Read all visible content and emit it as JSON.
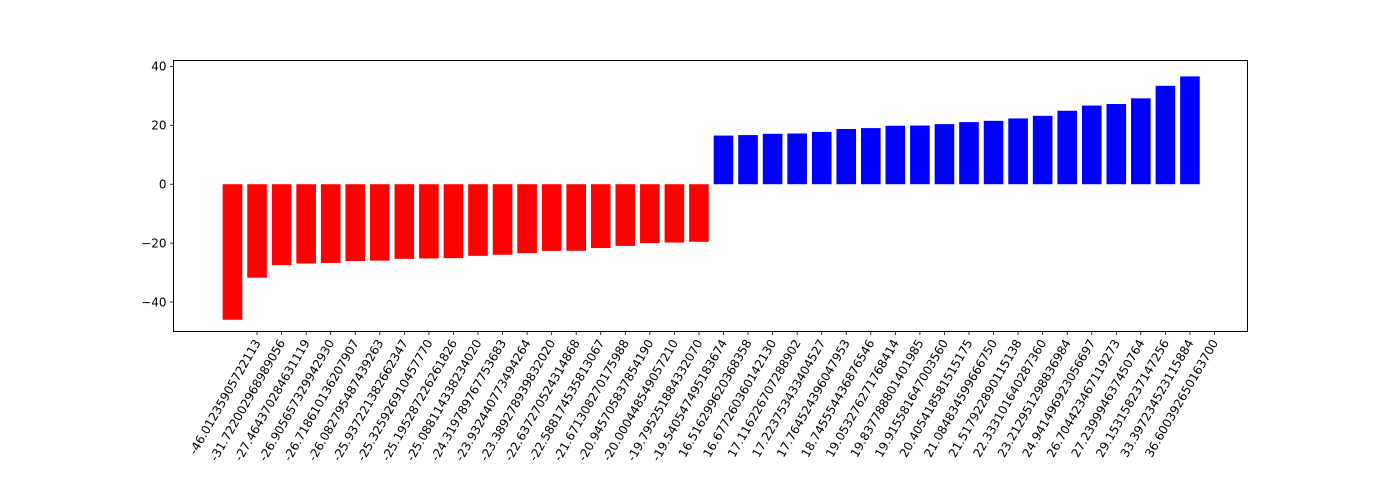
{
  "chart_data": {
    "type": "bar",
    "title": "",
    "xlabel": "",
    "ylabel": "",
    "ylim": [
      -50,
      42
    ],
    "yticks": [
      -40,
      -20,
      0,
      20,
      40
    ],
    "colors": {
      "negative": "#ff0000",
      "positive": "#0000ff"
    },
    "categories": [
      "-46.01235905722113",
      "-31.722002968989056",
      "-27.464370284631119",
      "-26.905657329942393",
      "-26.718610136207907",
      "-26.082795487439263",
      "-25.937221382662347",
      "-25.325926910457777",
      "-25.195287226261826",
      "-25.088114338234902",
      "-24.319789767753683",
      "-23.932440773494264",
      "-23.389278939832902",
      "-22.637270524314868",
      "-22.588174535813067",
      "-21.671308270175988",
      "-20.945705837854119",
      "-20.000448549057721",
      "-19.795251884332007",
      "-19.540547495183674",
      "16.516299620368358",
      "16.677260360142131",
      "17.116226707288902",
      "17.223753433404527",
      "17.764524396047953",
      "18.745554436876546",
      "19.053276271768414",
      "19.837788801401985",
      "19.915581647003560",
      "20.405418581515175",
      "21.084834599666750",
      "21.517922890115138",
      "22.333101640287360",
      "23.212951298836984",
      "24.941496923056697",
      "26.704423467119273",
      "27.239994637450764",
      "29.153158237147256",
      "33.397234523115884",
      "36.600392650163700"
    ],
    "tick_labels": [
      "-46.01235905722113",
      "-31.722002968989056",
      "-27.464370284631119",
      "-26.905657329942930",
      "-26.718610136207907",
      "-26.082795487439263",
      "-25.937221382662347",
      "-25.325926910457770",
      "-25.195287226261826",
      "-25.088114338234020",
      "-24.319789767753683",
      "-23.932440773494264",
      "-23.389278939832020",
      "-22.637270524314868",
      "-22.588174535813067",
      "-21.671308270175988",
      "-20.945705837854190",
      "-20.000448549057210",
      "-19.795251884332070",
      "-19.540547495183674",
      "16.516299620368358",
      "16.677260360142130",
      "17.116226707288902",
      "17.223753433404527",
      "17.764524396047953",
      "18.745554436876546",
      "19.053276271768414",
      "19.837788801401985",
      "19.915581647003560",
      "20.405418581515175",
      "21.084834599666750",
      "21.517922890115138",
      "22.333101640287360",
      "23.212951298836984",
      "24.941496923056697",
      "26.704423467119273",
      "27.239994637450764",
      "29.153158237147256",
      "33.397234523115884",
      "36.600392650163700"
    ],
    "values": [
      -46.01235905722113,
      -31.722002968989056,
      -27.46437028463112,
      -26.90565732994293,
      -26.718610136207907,
      -26.082795487439263,
      -25.937221382662347,
      -25.32592691045777,
      -25.195287226261826,
      -25.08811433823402,
      -24.319789767753683,
      -23.932440773494264,
      -23.38927893983202,
      -22.637270524314868,
      -22.588174535813067,
      -21.671308270175988,
      -20.94570583785419,
      -20.00044854905721,
      -19.79525188433207,
      -19.540547495183674,
      16.516299620368358,
      16.67726036014213,
      17.116226707288902,
      17.22375343340453,
      17.764524396047953,
      18.745554436876546,
      19.053276271768414,
      19.837788801401985,
      19.91558164700356,
      20.405418581515175,
      21.08483459966675,
      21.517922890115138,
      22.33310164028736,
      23.212951298836984,
      24.941496923056697,
      26.704423467119273,
      27.239994637450764,
      29.153158237147256,
      33.397234523115884,
      36.6003926501637
    ]
  }
}
